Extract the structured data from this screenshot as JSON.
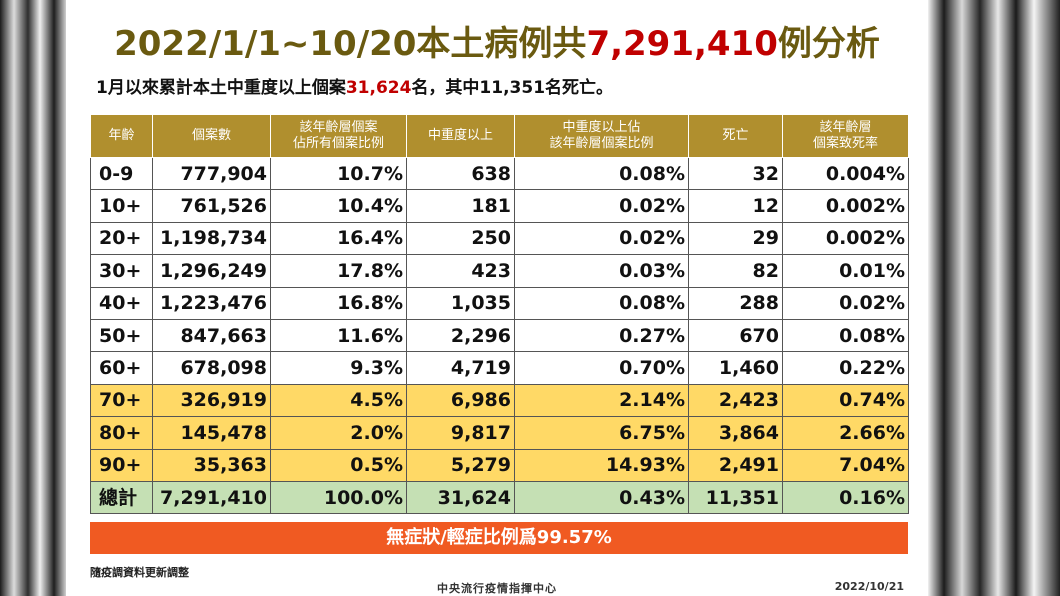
{
  "title": {
    "prefix": "2022/1/1~10/20本土病例共",
    "highlight": "7,291,410",
    "suffix": "例分析"
  },
  "subtitle": {
    "prefix": "1月以來累計本土中重度以上個案",
    "highlight": "31,624",
    "suffix": "名，其中11,351名死亡。"
  },
  "table": {
    "headers": [
      "年齡",
      "個案數",
      "該年齡層個案\n佔所有個案比例",
      "中重度以上",
      "中重度以上佔\n該年齡層個案比例",
      "死亡",
      "該年齡層\n個案致死率"
    ],
    "rows": [
      {
        "style": "white",
        "cells": [
          "0-9",
          "777,904",
          "10.7%",
          "638",
          "0.08%",
          "32",
          "0.004%"
        ]
      },
      {
        "style": "white",
        "cells": [
          "10+",
          "761,526",
          "10.4%",
          "181",
          "0.02%",
          "12",
          "0.002%"
        ]
      },
      {
        "style": "white",
        "cells": [
          "20+",
          "1,198,734",
          "16.4%",
          "250",
          "0.02%",
          "29",
          "0.002%"
        ]
      },
      {
        "style": "white",
        "cells": [
          "30+",
          "1,296,249",
          "17.8%",
          "423",
          "0.03%",
          "82",
          "0.01%"
        ]
      },
      {
        "style": "white",
        "cells": [
          "40+",
          "1,223,476",
          "16.8%",
          "1,035",
          "0.08%",
          "288",
          "0.02%"
        ]
      },
      {
        "style": "white",
        "cells": [
          "50+",
          "847,663",
          "11.6%",
          "2,296",
          "0.27%",
          "670",
          "0.08%"
        ]
      },
      {
        "style": "white",
        "cells": [
          "60+",
          "678,098",
          "9.3%",
          "4,719",
          "0.70%",
          "1,460",
          "0.22%"
        ]
      },
      {
        "style": "yellow",
        "cells": [
          "70+",
          "326,919",
          "4.5%",
          "6,986",
          "2.14%",
          "2,423",
          "0.74%"
        ]
      },
      {
        "style": "yellow",
        "cells": [
          "80+",
          "145,478",
          "2.0%",
          "9,817",
          "6.75%",
          "3,864",
          "2.66%"
        ]
      },
      {
        "style": "yellow",
        "cells": [
          "90+",
          "35,363",
          "0.5%",
          "5,279",
          "14.93%",
          "2,491",
          "7.04%"
        ]
      },
      {
        "style": "total",
        "cells": [
          "總計",
          "7,291,410",
          "100.0%",
          "31,624",
          "0.43%",
          "11,351",
          "0.16%"
        ]
      }
    ]
  },
  "note": "無症狀/輕症比例爲99.57%",
  "footnote": "隨疫調資料更新調整",
  "organization": "中央流行疫情指揮中心",
  "date": "2022/10/21",
  "colors": {
    "header": "#b08f2e",
    "highlight": "#c00000",
    "title": "#6a5a10",
    "yellow_row": "#ffd966",
    "total_row": "#c5e0b4",
    "note_bar": "#f05a22"
  }
}
